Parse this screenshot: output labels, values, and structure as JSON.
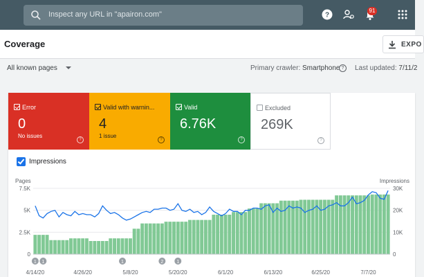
{
  "topbar": {
    "search_placeholder": "Inspect any URL in \"apairon.com\"",
    "icons": [
      "search-icon",
      "help-icon",
      "manage-users-icon",
      "notifications-icon",
      "apps-grid-icon"
    ],
    "notification_count": "91",
    "bg_color": "#455a64"
  },
  "header": {
    "title": "Coverage",
    "export_label": "EXPO"
  },
  "filter": {
    "known_pages": "All known pages",
    "crawler_label": "Primary crawler:",
    "crawler_value": "Smartphone",
    "updated_label": "Last updated:",
    "updated_value": "7/11/2"
  },
  "tiles": [
    {
      "label": "Error",
      "value": "0",
      "sub": "No issues",
      "color": "#d93025"
    },
    {
      "label": "Valid with warnin...",
      "value": "4",
      "sub": "1 issue",
      "color": "#f9ab00"
    },
    {
      "label": "Valid",
      "value": "6.76K",
      "sub": "",
      "color": "#1e8e3e"
    },
    {
      "label": "Excluded",
      "value": "269K",
      "sub": "",
      "color": "#ffffff"
    }
  ],
  "impressions_toggle": {
    "label": "Impressions",
    "checked": true
  },
  "chart_data": {
    "type": "bar",
    "left_axis_title": "Pages",
    "right_axis_title": "Impressions",
    "left_ticks": [
      "7.5K",
      "5K",
      "2.5K",
      "0"
    ],
    "right_ticks": [
      "30K",
      "20K",
      "10K",
      "0"
    ],
    "ylim_pages": [
      0,
      7500
    ],
    "ylim_impressions": [
      0,
      30000
    ],
    "x_labels": [
      "4/14/20",
      "4/26/20",
      "5/8/20",
      "5/20/20",
      "6/1/20",
      "6/13/20",
      "6/25/20",
      "7/7/20"
    ],
    "x_label_positions": [
      0,
      12,
      24,
      36,
      48,
      60,
      72,
      84
    ],
    "annotations": [
      {
        "index": 0,
        "label": "1"
      },
      {
        "index": 2,
        "label": "1"
      },
      {
        "index": 22,
        "label": "1"
      },
      {
        "index": 32,
        "label": "2"
      },
      {
        "index": 36,
        "label": "1"
      }
    ],
    "series": [
      {
        "name": "Pages (Valid)",
        "color": "#81c995",
        "values": [
          2200,
          2200,
          2200,
          2200,
          1600,
          1600,
          1600,
          1600,
          1600,
          1800,
          1800,
          1800,
          1800,
          1800,
          1500,
          1500,
          1500,
          1500,
          1500,
          1800,
          1800,
          1800,
          1800,
          1800,
          1800,
          2900,
          2900,
          3500,
          3500,
          3500,
          3500,
          3500,
          3500,
          3700,
          3700,
          3700,
          3700,
          3700,
          3700,
          3900,
          3900,
          3900,
          3900,
          3900,
          3900,
          4500,
          4500,
          4500,
          4500,
          4500,
          4800,
          4800,
          4800,
          4800,
          5200,
          5200,
          5200,
          5800,
          5800,
          5800,
          5800,
          5800,
          6100,
          6100,
          6100,
          6100,
          6100,
          6200,
          6200,
          6200,
          6200,
          6200,
          6200,
          6200,
          6200,
          6200,
          6700,
          6700,
          6700,
          6700,
          6700,
          6700,
          6700,
          6700,
          6700,
          6800,
          6800,
          6800,
          6800,
          6800
        ]
      },
      {
        "name": "Impressions",
        "color": "#1a73e8",
        "values": [
          22000,
          17500,
          16500,
          18500,
          19500,
          20000,
          17000,
          19000,
          18000,
          17500,
          19500,
          18000,
          18500,
          18000,
          18000,
          17000,
          18500,
          22000,
          20000,
          18500,
          19000,
          18000,
          16500,
          15500,
          16000,
          17000,
          18000,
          19000,
          19500,
          19000,
          20500,
          20500,
          21000,
          21000,
          20000,
          20500,
          23000,
          20000,
          19500,
          20500,
          19000,
          19500,
          18000,
          19000,
          21500,
          19500,
          18500,
          17500,
          18500,
          20500,
          19500,
          19500,
          18000,
          20000,
          20000,
          21000,
          21000,
          20500,
          22000,
          22500,
          19000,
          21000,
          19500,
          20000,
          22000,
          21000,
          21500,
          21000,
          19000,
          20000,
          20500,
          22000,
          20000,
          20500,
          22000,
          22500,
          23500,
          22000,
          22000,
          23500,
          26000,
          23000,
          23500,
          24500,
          27000,
          28500,
          28000,
          25500,
          25000,
          29000
        ]
      }
    ]
  }
}
